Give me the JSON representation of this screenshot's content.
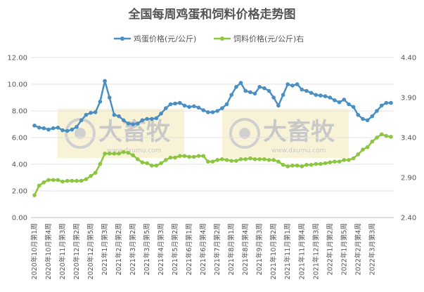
{
  "chart_data": {
    "type": "line",
    "title": "全国每周鸡蛋和饲料价格走势图",
    "watermark": {
      "name": "大畜牧",
      "url": "www.dxumu.com"
    },
    "legend_position": "top",
    "grid": true,
    "x_tick_labels": [
      "2020年10月第1周",
      "2020年10月第4周",
      "2020年11月第3周",
      "2020年12月第2周",
      "2020年12月第5周",
      "2021年1月第3周",
      "2021年2月第2周",
      "2021年3月第2周",
      "2021年3月第5周",
      "2021年4月第3周",
      "2021年5月第2周",
      "2021年6月第1周",
      "2021年6月第4周",
      "2021年7月第2周",
      "2021年8月第1周",
      "2021年8月第4周",
      "2021年9月第3周",
      "2021年10月第2周",
      "2021年11月第1周",
      "2021年11月第4周",
      "2021年12月第3周",
      "2022年1月第2周",
      "2022年1月第5周",
      "2022年2月第4周",
      "2022年3月第3周"
    ],
    "y_left": {
      "min": 0,
      "max": 12,
      "ticks": [
        "0.00",
        "2.00",
        "4.00",
        "6.00",
        "8.00",
        "10.00",
        "12.00"
      ]
    },
    "y_right": {
      "min": 2.4,
      "max": 4.4,
      "ticks": [
        "2.40",
        "2.90",
        "3.40",
        "3.90",
        "4.40"
      ]
    },
    "series": [
      {
        "name": "鸡蛋价格(元/公斤)",
        "axis": "left",
        "color": "#4a8fc4",
        "values": [
          6.9,
          6.75,
          6.7,
          6.6,
          6.7,
          6.75,
          6.55,
          6.5,
          6.6,
          6.8,
          7.3,
          7.7,
          7.85,
          7.9,
          8.7,
          10.25,
          9.0,
          7.7,
          7.6,
          7.3,
          7.05,
          7.0,
          7.05,
          7.3,
          7.4,
          7.4,
          7.45,
          7.8,
          8.2,
          8.5,
          8.55,
          8.6,
          8.4,
          8.3,
          8.35,
          8.25,
          8.05,
          7.9,
          7.9,
          8.0,
          8.2,
          8.5,
          9.2,
          9.8,
          10.1,
          9.5,
          9.4,
          9.3,
          9.8,
          9.7,
          9.5,
          9.0,
          8.4,
          9.2,
          10.0,
          9.9,
          10.0,
          9.6,
          9.5,
          9.35,
          9.2,
          9.15,
          9.1,
          9.0,
          8.8,
          8.65,
          8.85,
          8.5,
          8.3,
          7.7,
          7.4,
          7.3,
          7.6,
          8.0,
          8.4,
          8.6,
          8.6
        ]
      },
      {
        "name": "饲料价格(元/公斤)右",
        "axis": "right",
        "color": "#8cc63f",
        "values": [
          2.68,
          2.8,
          2.84,
          2.87,
          2.87,
          2.87,
          2.85,
          2.86,
          2.86,
          2.86,
          2.86,
          2.88,
          2.92,
          2.96,
          3.07,
          3.2,
          3.2,
          3.2,
          3.2,
          3.22,
          3.21,
          3.18,
          3.13,
          3.09,
          3.08,
          3.05,
          3.05,
          3.08,
          3.12,
          3.15,
          3.15,
          3.17,
          3.17,
          3.16,
          3.16,
          3.17,
          3.17,
          3.1,
          3.1,
          3.12,
          3.13,
          3.12,
          3.11,
          3.11,
          3.13,
          3.13,
          3.14,
          3.13,
          3.13,
          3.13,
          3.12,
          3.12,
          3.1,
          3.06,
          3.04,
          3.05,
          3.05,
          3.04,
          3.06,
          3.06,
          3.07,
          3.07,
          3.08,
          3.09,
          3.1,
          3.1,
          3.12,
          3.12,
          3.14,
          3.19,
          3.25,
          3.28,
          3.35,
          3.4,
          3.44,
          3.42,
          3.41
        ]
      }
    ]
  }
}
